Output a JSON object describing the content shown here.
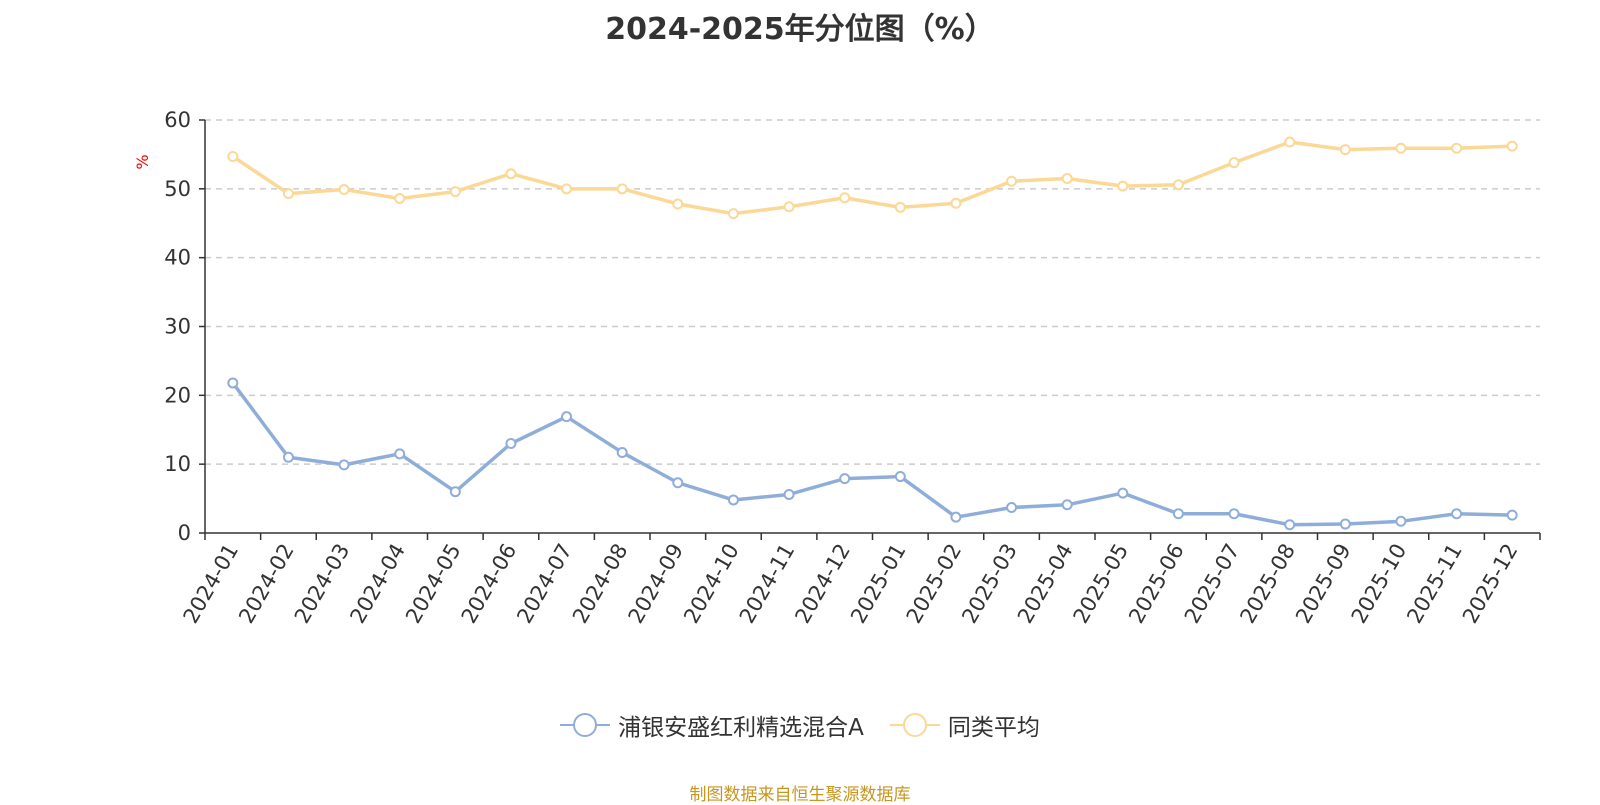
{
  "chart_data": {
    "type": "line",
    "title": "2024-2025年分位图（%）",
    "ylabel": "%",
    "xlabel": "",
    "ylim": [
      0,
      60
    ],
    "yticks": [
      0,
      10,
      20,
      30,
      40,
      50,
      60
    ],
    "grid": true,
    "legend_position": "bottom-center",
    "categories": [
      "2024-01",
      "2024-02",
      "2024-03",
      "2024-04",
      "2024-05",
      "2024-06",
      "2024-07",
      "2024-08",
      "2024-09",
      "2024-10",
      "2024-11",
      "2024-12",
      "2025-01",
      "2025-02",
      "2025-03",
      "2025-04",
      "2025-05",
      "2025-06",
      "2025-07",
      "2025-08",
      "2025-09",
      "2025-10",
      "2025-11",
      "2025-12"
    ],
    "series": [
      {
        "name": "浦银安盛红利精选混合A",
        "color": "#8eaed9",
        "values": [
          21.8,
          11.0,
          9.9,
          11.5,
          6.0,
          13.0,
          16.9,
          11.7,
          7.3,
          4.8,
          5.6,
          7.9,
          8.2,
          2.3,
          3.7,
          4.1,
          5.8,
          2.8,
          2.8,
          1.2,
          1.3,
          1.7,
          2.8,
          2.6
        ]
      },
      {
        "name": "同类平均",
        "color": "#fbd896",
        "values": [
          54.7,
          49.3,
          49.9,
          48.6,
          49.6,
          52.2,
          50.0,
          50.0,
          47.8,
          46.4,
          47.4,
          48.7,
          47.3,
          47.9,
          51.1,
          51.5,
          50.4,
          50.6,
          53.8,
          56.8,
          55.7,
          55.9,
          55.9,
          56.2
        ]
      }
    ]
  },
  "source_note": "制图数据来自恒生聚源数据库"
}
